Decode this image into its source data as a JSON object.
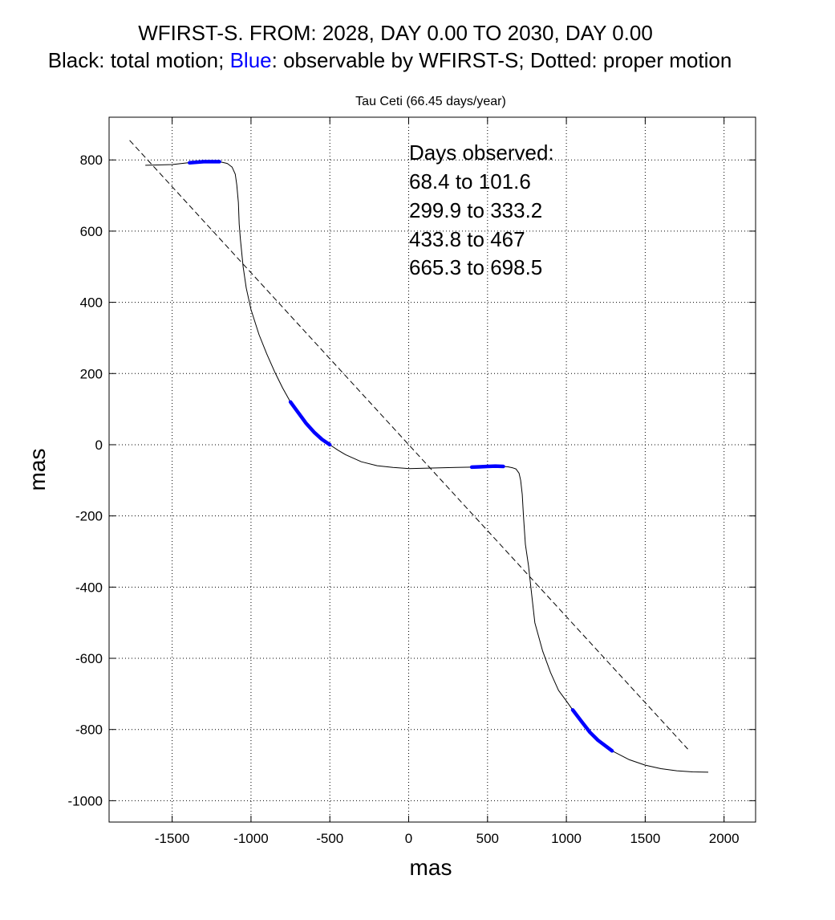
{
  "header": {
    "line1": "WFIRST-S. FROM: 2028, DAY 0.00 TO 2030, DAY 0.00",
    "line2_prefix": "Black: total motion; ",
    "line2_blue": "Blue",
    "line2_suffix": ": observable by WFIRST-S; Dotted: proper motion"
  },
  "chart_data": {
    "type": "line",
    "title": "Tau Ceti (66.45 days/year)",
    "xlabel": "mas",
    "ylabel": "mas",
    "xlim": [
      -1900,
      2200
    ],
    "ylim": [
      -1060,
      920
    ],
    "xticks": [
      -1500,
      -1000,
      -500,
      0,
      500,
      1000,
      1500,
      2000
    ],
    "yticks": [
      800,
      600,
      400,
      200,
      0,
      -200,
      -400,
      -600,
      -800,
      -1000
    ],
    "grid": true,
    "annotation": {
      "heading": "Days observed:",
      "lines": [
        "68.4 to 101.6",
        "299.9 to 333.2",
        "433.8 to 467",
        "665.3 to 698.5"
      ]
    },
    "colors": {
      "total": "#000000",
      "observable": "#0000ff",
      "proper": "#000000"
    },
    "series": [
      {
        "name": "total motion",
        "style": "solid",
        "x": [
          -1670,
          -1500,
          -1400,
          -1300,
          -1250,
          -1200,
          -1150,
          -1120,
          -1100,
          -1090,
          -1080,
          -1075,
          -1068,
          -1050,
          -1030,
          -1000,
          -950,
          -900,
          -850,
          -800,
          -750,
          -700,
          -650,
          -600,
          -550,
          -500,
          -450,
          -400,
          -300,
          -200,
          -100,
          0,
          100,
          200,
          300,
          400,
          450,
          500,
          550,
          600,
          630,
          660,
          680,
          700,
          710,
          720,
          728,
          740,
          760,
          780,
          800,
          850,
          900,
          950,
          1000,
          1040,
          1100,
          1150,
          1200,
          1290,
          1400,
          1500,
          1600,
          1700,
          1800,
          1900
        ],
        "y": [
          785,
          787,
          792,
          795,
          796,
          795,
          790,
          780,
          760,
          730,
          680,
          620,
          580,
          500,
          440,
          380,
          310,
          255,
          205,
          160,
          120,
          90,
          60,
          35,
          15,
          0,
          -15,
          -28,
          -48,
          -59,
          -64,
          -67,
          -66,
          -65,
          -64,
          -63,
          -62,
          -61,
          -60,
          -61,
          -62,
          -65,
          -68,
          -80,
          -100,
          -140,
          -200,
          -280,
          -340,
          -420,
          -500,
          -580,
          -640,
          -690,
          -720,
          -745,
          -780,
          -808,
          -830,
          -860,
          -885,
          -900,
          -910,
          -916,
          -919,
          -920
        ]
      },
      {
        "name": "proper motion",
        "style": "dashed",
        "x": [
          -1770,
          1770
        ],
        "y": [
          855,
          -855
        ]
      }
    ],
    "observed_segments": [
      {
        "days": "68.4 to 101.6",
        "x": [
          -1390,
          -1300,
          -1200
        ],
        "y": [
          792,
          795,
          795
        ]
      },
      {
        "days": "299.9 to 333.2",
        "x": [
          -750,
          -700,
          -650,
          -600,
          -550,
          -500
        ],
        "y": [
          120,
          90,
          60,
          35,
          15,
          0
        ]
      },
      {
        "days": "433.8 to 467",
        "x": [
          400,
          450,
          500,
          550,
          600
        ],
        "y": [
          -63,
          -62,
          -61,
          -60,
          -61
        ]
      },
      {
        "days": "665.3 to 698.5",
        "x": [
          1040,
          1100,
          1150,
          1200,
          1290
        ],
        "y": [
          -745,
          -780,
          -808,
          -830,
          -860
        ]
      }
    ]
  }
}
